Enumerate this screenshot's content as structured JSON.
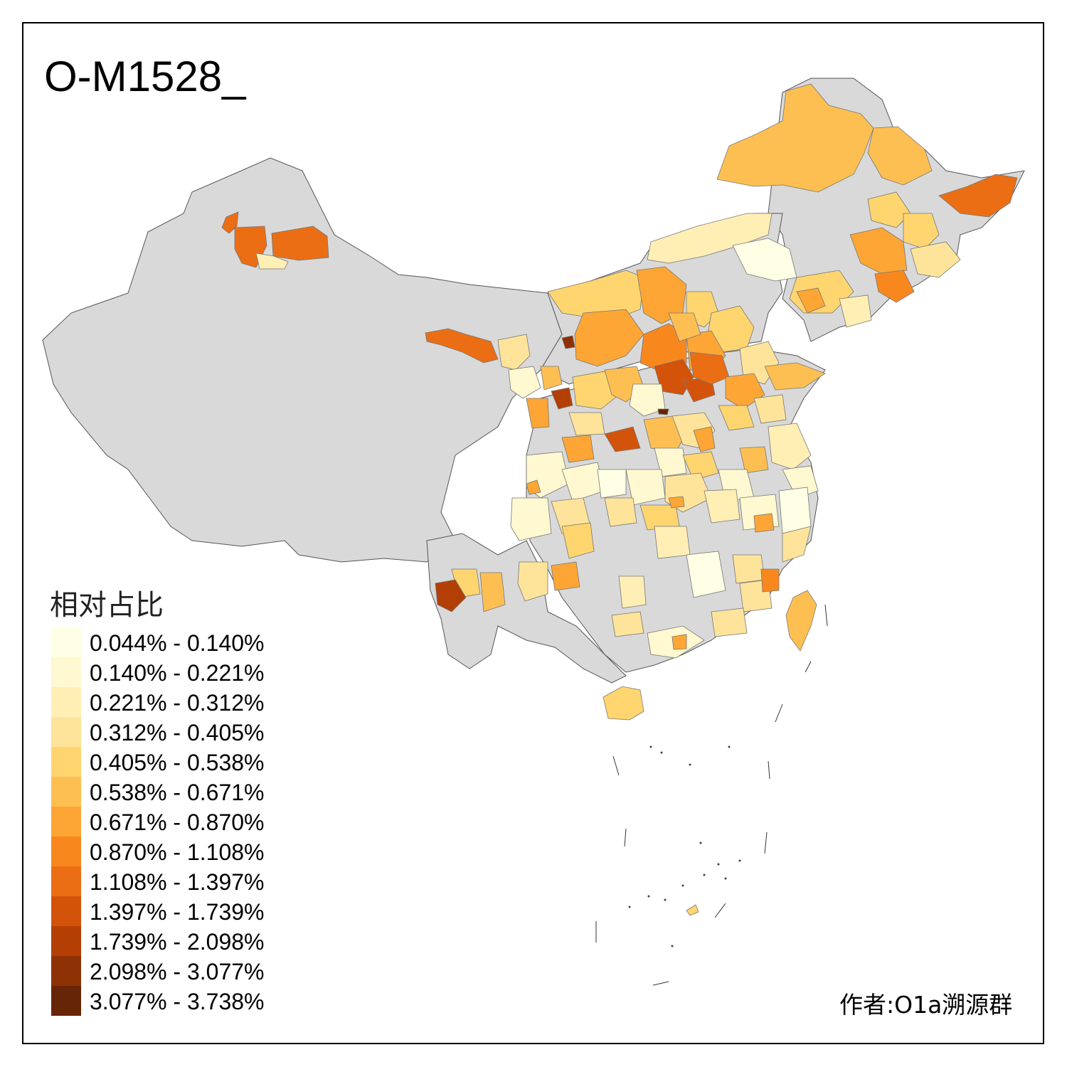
{
  "title": "O-M1528_",
  "legend": {
    "title": "相对占比",
    "items": [
      {
        "label": "0.044% - 0.140%",
        "color": "#FFFFE5"
      },
      {
        "label": "0.140% - 0.221%",
        "color": "#FFF8D0"
      },
      {
        "label": "0.221% - 0.312%",
        "color": "#FFEFB5"
      },
      {
        "label": "0.312% - 0.405%",
        "color": "#FEE49A"
      },
      {
        "label": "0.405% - 0.538%",
        "color": "#FED56F"
      },
      {
        "label": "0.538% - 0.671%",
        "color": "#FEBF52"
      },
      {
        "label": "0.671% - 0.870%",
        "color": "#FDA535"
      },
      {
        "label": "0.870% - 1.108%",
        "color": "#F8881E"
      },
      {
        "label": "1.108% - 1.397%",
        "color": "#EB6E14"
      },
      {
        "label": "1.397% - 1.739%",
        "color": "#D4530A"
      },
      {
        "label": "1.739% - 2.098%",
        "color": "#B33F05"
      },
      {
        "label": "2.098% - 3.077%",
        "color": "#8E3104"
      },
      {
        "label": "3.077% - 3.738%",
        "color": "#662506"
      }
    ]
  },
  "author": "作者:O1a溯源群",
  "colors": {
    "no_data": "#D9D9D9",
    "border": "#555555",
    "frame": "#000000"
  }
}
